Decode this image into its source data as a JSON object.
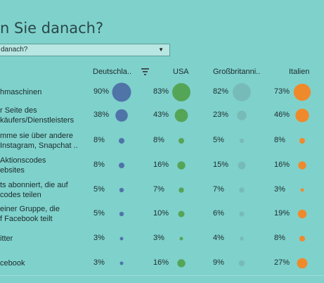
{
  "header": {
    "title": "n Sie danach?",
    "dropdown_value": "danach?"
  },
  "chart_data": {
    "type": "scatter",
    "columns": [
      "Deutschla..",
      "USA",
      "Großbritanni..",
      "Italien"
    ],
    "colors": [
      "#4f74a8",
      "#55a557",
      "#77bbb8",
      "#ef8a2c"
    ],
    "rows": [
      {
        "label": [
          "hmaschinen"
        ],
        "values": [
          90,
          83,
          82,
          73
        ]
      },
      {
        "label": [
          "r Seite des",
          "käufers/Dienstleisters"
        ],
        "values": [
          38,
          43,
          23,
          46
        ]
      },
      {
        "label": [
          "mme sie über andere",
          "Instagram, Snapchat .."
        ],
        "values": [
          8,
          8,
          5,
          8
        ]
      },
      {
        "label": [
          "Aktionscodes",
          "ebsites"
        ],
        "values": [
          8,
          16,
          15,
          16
        ]
      },
      {
        "label": [
          "ts abonniert, die auf",
          "codes teilen"
        ],
        "values": [
          5,
          7,
          7,
          3
        ]
      },
      {
        "label": [
          "einer Gruppe, die",
          "f Facebook teilt"
        ],
        "values": [
          5,
          10,
          6,
          19
        ]
      },
      {
        "label": [
          "itter"
        ],
        "values": [
          3,
          3,
          4,
          8
        ]
      },
      {
        "label": [
          "cebook"
        ],
        "values": [
          3,
          16,
          9,
          27
        ]
      }
    ],
    "unit": "%"
  }
}
